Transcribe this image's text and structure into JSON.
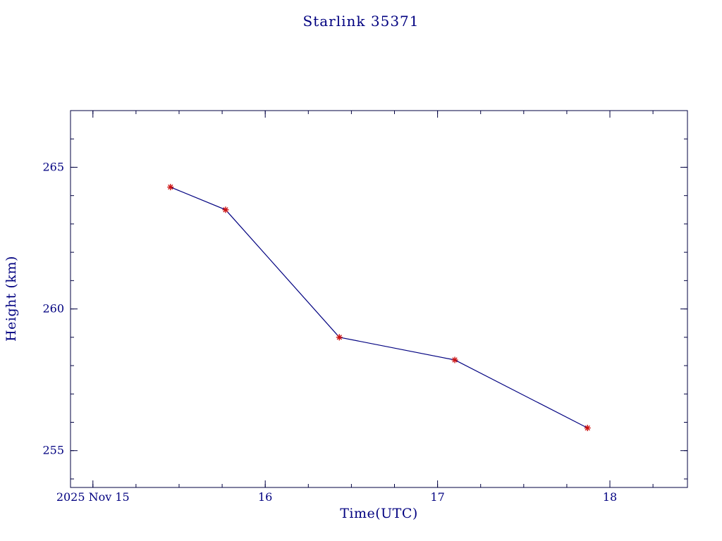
{
  "chart_data": {
    "type": "line",
    "title": "Starlink 35371",
    "xlabel": "Time(UTC)",
    "ylabel": "Height (km)",
    "x": [
      15.45,
      15.77,
      16.43,
      17.1,
      17.87
    ],
    "y": [
      264.3,
      263.5,
      259.0,
      258.2,
      255.8
    ],
    "xlim": [
      14.87,
      18.45
    ],
    "ylim": [
      253.7,
      267.0
    ],
    "x_major_ticks": [
      15,
      16,
      17,
      18
    ],
    "x_tick_labels": [
      "2025 Nov 15",
      "16",
      "17",
      "18"
    ],
    "x_minor_step": 0.25,
    "y_major_ticks": [
      255,
      260,
      265
    ],
    "y_tick_labels": [
      "255",
      "260",
      "265"
    ],
    "y_minor_step": 1,
    "grid": false,
    "legend": null,
    "marker": "asterisk",
    "line_color": "#000080",
    "marker_color": "#cc1111",
    "frame_color": "#000040",
    "text_color": "#000080"
  }
}
